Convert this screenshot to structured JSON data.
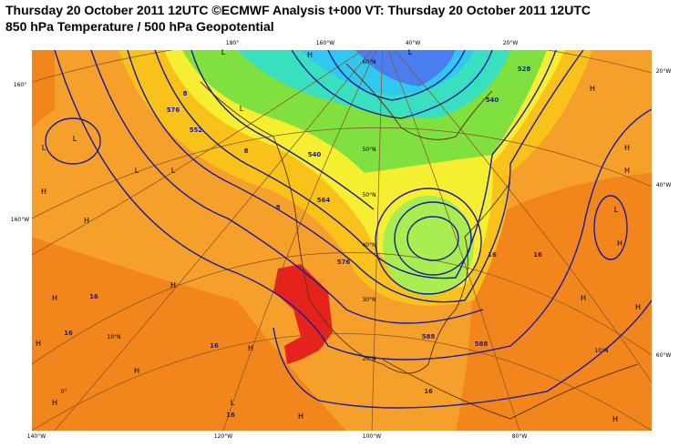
{
  "header": {
    "title": "Thursday 20 October 2011 12UTC ©ECMWF Analysis t+000 VT: Thursday 20 October 2011 12UTC",
    "subtitle": "850 hPa Temperature / 500 hPa Geopotential"
  },
  "graticule_labels": [
    "180°",
    "160°W",
    "40°W",
    "20°W",
    "160°",
    "160°W",
    "20°W",
    "40°W",
    "60°W",
    "140°W",
    "120°W",
    "100°W",
    "80°W",
    "60°N",
    "50°N",
    "50°N",
    "40°N",
    "30°N",
    "20°N",
    "10°N",
    "0°",
    "10°N"
  ],
  "contour_labels": [
    "576",
    "552",
    "540",
    "564",
    "576",
    "588",
    "588",
    "540",
    "528",
    "8",
    "8",
    "8",
    "16",
    "16",
    "16",
    "16",
    "16",
    "16",
    "16"
  ],
  "pressure_centers": [
    "L",
    "L",
    "L",
    "L",
    "L",
    "L",
    "L",
    "H",
    "H",
    "H",
    "H",
    "H",
    "H",
    "H",
    "H",
    "H",
    "H",
    "H",
    "H",
    "L",
    "H",
    "H",
    "H",
    "L",
    "H",
    "H"
  ]
}
